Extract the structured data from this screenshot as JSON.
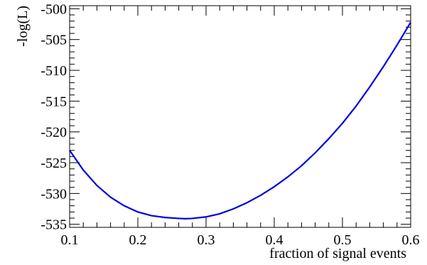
{
  "chart_data": {
    "type": "line",
    "title": "",
    "xlabel": "fraction of signal events",
    "ylabel": "-log(L)",
    "xlim": [
      0.1,
      0.6
    ],
    "ylim": [
      -535.5,
      -499.5
    ],
    "xticks": [
      0.1,
      0.2,
      0.3,
      0.4,
      0.5,
      0.6
    ],
    "xtick_labels": [
      "0.1",
      "0.2",
      "0.3",
      "0.4",
      "0.5",
      "0.6"
    ],
    "yticks": [
      -500,
      -505,
      -510,
      -515,
      -520,
      -525,
      -530,
      -535
    ],
    "ytick_labels": [
      "-500",
      "-505",
      "-510",
      "-515",
      "-520",
      "-525",
      "-530",
      "-535"
    ],
    "grid": false,
    "series": [
      {
        "color": "#0000e0",
        "x": [
          0.1,
          0.12,
          0.14,
          0.16,
          0.18,
          0.2,
          0.22,
          0.24,
          0.26,
          0.27,
          0.28,
          0.3,
          0.32,
          0.34,
          0.36,
          0.38,
          0.4,
          0.42,
          0.44,
          0.46,
          0.48,
          0.5,
          0.52,
          0.54,
          0.56,
          0.58,
          0.6
        ],
        "values": [
          -523.0,
          -526.2,
          -528.7,
          -530.6,
          -532.0,
          -533.0,
          -533.6,
          -533.9,
          -534.05,
          -534.1,
          -534.05,
          -533.8,
          -533.3,
          -532.5,
          -531.5,
          -530.3,
          -528.9,
          -527.3,
          -525.5,
          -523.4,
          -521.1,
          -518.6,
          -515.8,
          -512.7,
          -509.4,
          -505.9,
          -502.2
        ]
      }
    ]
  }
}
